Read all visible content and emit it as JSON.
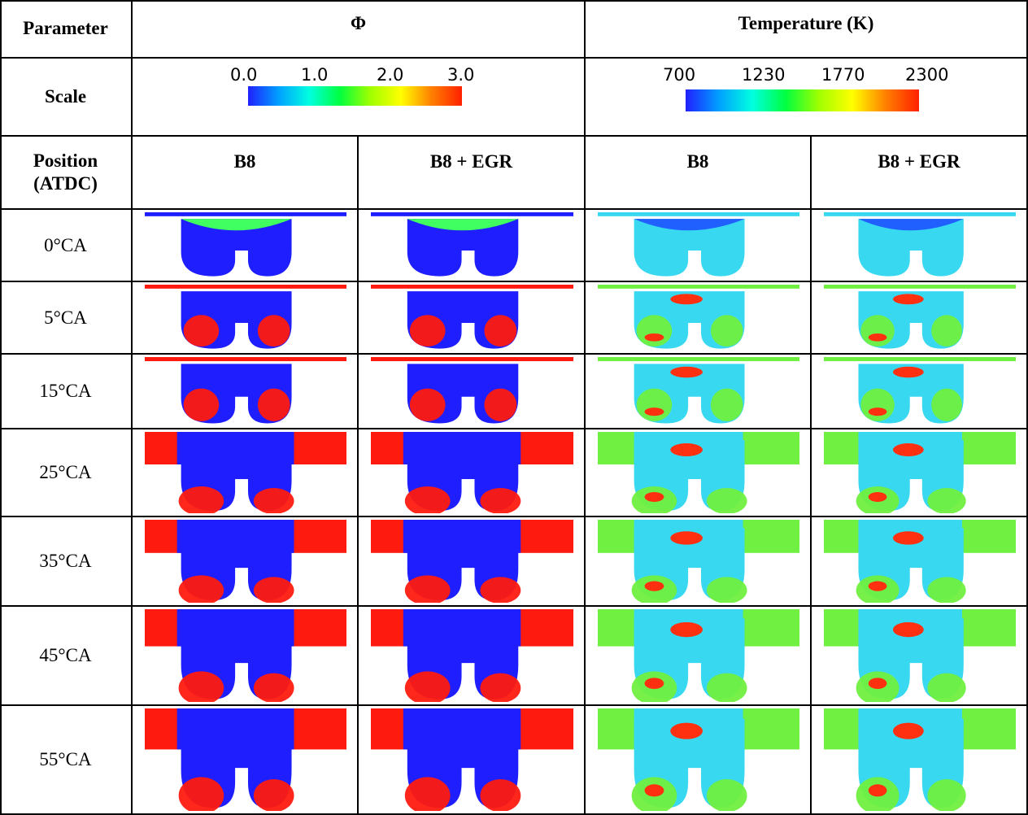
{
  "table": {
    "header": {
      "parameter": "Parameter",
      "phi": "Φ",
      "temperature": "Temperature (K)"
    },
    "scale": {
      "label": "Scale",
      "phi_ticks": [
        "0.0",
        "1.0",
        "2.0",
        "3.0"
      ],
      "temp_ticks": [
        "700",
        "1230",
        "1770",
        "2300"
      ]
    },
    "subheader": {
      "label": "Position\n(ATDC)",
      "columns": [
        "B8",
        "B8 + EGR",
        "B8",
        "B8 + EGR"
      ]
    },
    "rows": [
      "0°CA",
      "5°CA",
      "15°CA",
      "25°CA",
      "35°CA",
      "45°CA",
      "55°CA"
    ]
  }
}
